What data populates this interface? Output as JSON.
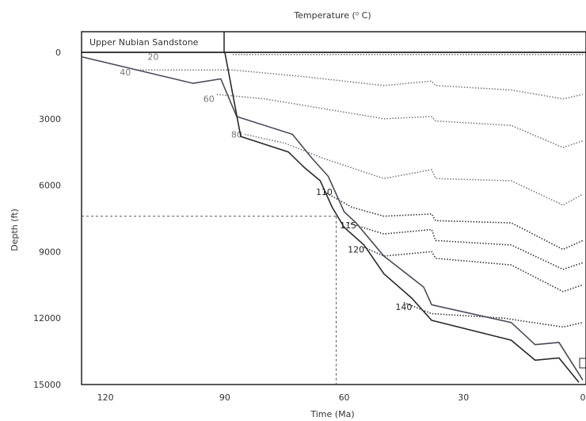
{
  "chart_data": {
    "type": "line",
    "title": "Temperature (⁰ C)",
    "xlabel": "Time (Ma)",
    "ylabel": "Depth (ft)",
    "xlim": [
      126,
      0
    ],
    "ylim": [
      0,
      15000
    ],
    "x_ticks": [
      120,
      90,
      60,
      30,
      0
    ],
    "y_ticks": [
      0,
      3000,
      6000,
      9000,
      12000,
      15000
    ],
    "formation_label": "Upper Nubian Sandstone",
    "marker": {
      "x": 62,
      "y": 7400
    },
    "burial_curves": [
      {
        "points": [
          [
            126,
            200
          ],
          [
            98,
            1400
          ],
          [
            91,
            1200
          ],
          [
            87,
            2900
          ],
          [
            73,
            3700
          ],
          [
            68,
            4800
          ],
          [
            64,
            5600
          ],
          [
            60,
            7200
          ],
          [
            57,
            7700
          ],
          [
            50,
            9200
          ],
          [
            40,
            10600
          ],
          [
            38,
            11400
          ],
          [
            18,
            12200
          ],
          [
            12,
            13200
          ],
          [
            6,
            13100
          ],
          [
            0,
            14800
          ]
        ]
      },
      {
        "points": [
          [
            90,
            0
          ],
          [
            86,
            3800
          ],
          [
            74,
            4500
          ],
          [
            70,
            5200
          ],
          [
            66,
            5800
          ],
          [
            63,
            7000
          ],
          [
            60,
            7900
          ],
          [
            55,
            8700
          ],
          [
            50,
            10000
          ],
          [
            43,
            11100
          ],
          [
            38,
            12100
          ],
          [
            18,
            13000
          ],
          [
            12,
            13900
          ],
          [
            6,
            13800
          ],
          [
            1,
            14900
          ]
        ]
      }
    ],
    "isotherms": [
      {
        "label": "20",
        "label_x": 108,
        "label_y": 200,
        "points": [
          [
            88,
            100
          ],
          [
            0,
            100
          ]
        ]
      },
      {
        "label": "40",
        "label_x": 115,
        "label_y": 900,
        "points": [
          [
            112,
            800
          ],
          [
            88,
            800
          ],
          [
            70,
            1100
          ],
          [
            50,
            1500
          ],
          [
            38,
            1300
          ],
          [
            37,
            1500
          ],
          [
            18,
            1700
          ],
          [
            5,
            2100
          ],
          [
            0,
            1900
          ]
        ]
      },
      {
        "label": "60",
        "label_x": 94,
        "label_y": 2100,
        "points": [
          [
            92,
            1900
          ],
          [
            80,
            2100
          ],
          [
            60,
            2700
          ],
          [
            50,
            3000
          ],
          [
            38,
            2900
          ],
          [
            37,
            3100
          ],
          [
            18,
            3300
          ],
          [
            5,
            4300
          ],
          [
            0,
            4000
          ]
        ]
      },
      {
        "label": "80",
        "label_x": 87,
        "label_y": 3700,
        "points": [
          [
            85,
            3700
          ],
          [
            75,
            4100
          ],
          [
            65,
            4800
          ],
          [
            50,
            5700
          ],
          [
            38,
            5300
          ],
          [
            37,
            5700
          ],
          [
            18,
            5800
          ],
          [
            5,
            6900
          ],
          [
            0,
            6400
          ]
        ]
      },
      {
        "label": "110",
        "label_x": 65,
        "label_y": 6300,
        "points": [
          [
            65,
            6300
          ],
          [
            58,
            7000
          ],
          [
            50,
            7400
          ],
          [
            38,
            7300
          ],
          [
            37,
            7600
          ],
          [
            18,
            7700
          ],
          [
            5,
            8900
          ],
          [
            0,
            8500
          ]
        ]
      },
      {
        "label": "115",
        "label_x": 59,
        "label_y": 7800,
        "points": [
          [
            59,
            7700
          ],
          [
            50,
            8200
          ],
          [
            38,
            8000
          ],
          [
            37,
            8500
          ],
          [
            18,
            8700
          ],
          [
            5,
            9800
          ],
          [
            0,
            9500
          ]
        ]
      },
      {
        "label": "120",
        "label_x": 57,
        "label_y": 8900,
        "points": [
          [
            55,
            8800
          ],
          [
            50,
            9200
          ],
          [
            38,
            9000
          ],
          [
            37,
            9300
          ],
          [
            18,
            9600
          ],
          [
            5,
            10800
          ],
          [
            0,
            10500
          ]
        ]
      },
      {
        "label": "140",
        "label_x": 45,
        "label_y": 11500,
        "points": [
          [
            45,
            11300
          ],
          [
            38,
            11800
          ],
          [
            20,
            12000
          ],
          [
            5,
            12400
          ],
          [
            0,
            12200
          ]
        ]
      }
    ]
  }
}
